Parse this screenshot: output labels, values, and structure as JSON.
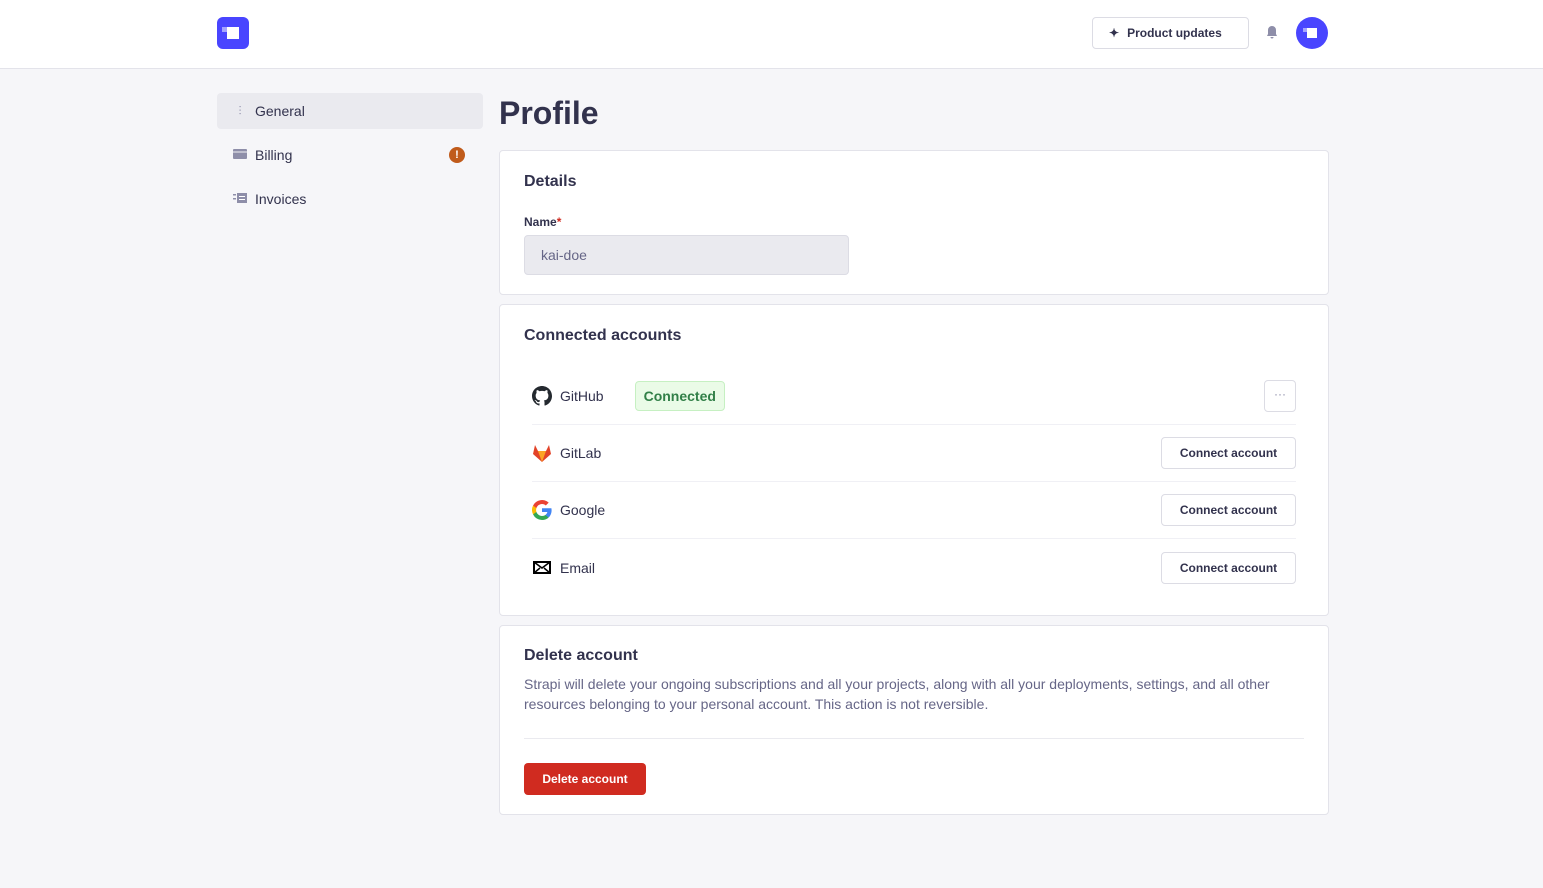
{
  "header": {
    "product_updates": "Product updates"
  },
  "sidebar": {
    "items": [
      {
        "label": "General",
        "active": true
      },
      {
        "label": "Billing",
        "alert": "!"
      },
      {
        "label": "Invoices"
      }
    ]
  },
  "page": {
    "title": "Profile"
  },
  "details": {
    "title": "Details",
    "name_label": "Name",
    "required": "*",
    "name_value": "kai-doe"
  },
  "connected": {
    "title": "Connected accounts",
    "accounts": [
      {
        "name": "GitHub",
        "status": "Connected",
        "more": "···"
      },
      {
        "name": "GitLab",
        "action": "Connect account"
      },
      {
        "name": "Google",
        "action": "Connect account"
      },
      {
        "name": "Email",
        "action": "Connect account"
      }
    ]
  },
  "delete": {
    "title": "Delete account",
    "description": "Strapi will delete your ongoing subscriptions and all your projects, along with all your deployments, settings, and all other resources belonging to your personal account. This action is not reversible.",
    "button": "Delete account"
  },
  "colors": {
    "brand": "#4945ff",
    "danger": "#d02b20",
    "success": "#328048",
    "warning": "#c05b1b"
  }
}
